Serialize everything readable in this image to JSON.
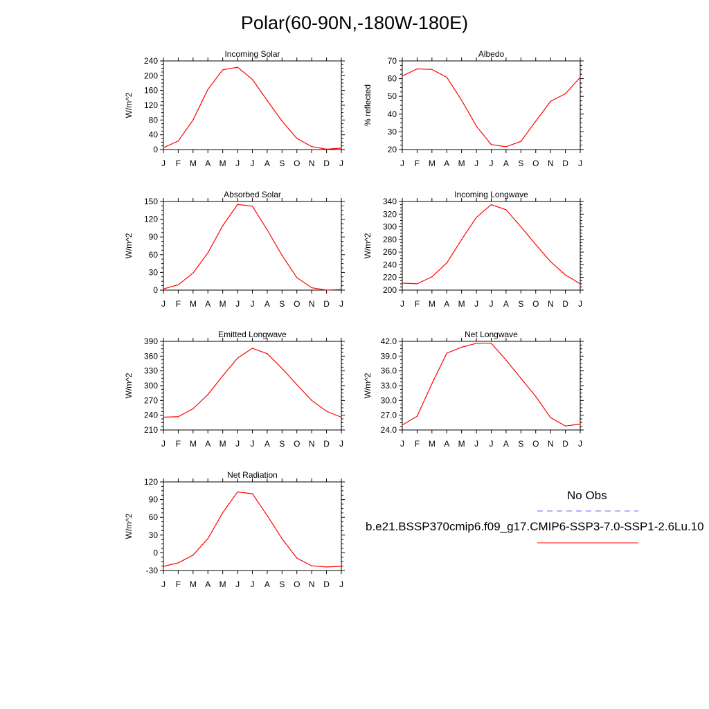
{
  "title": "Polar(60-90N,-180W-180E)",
  "months": [
    "J",
    "F",
    "M",
    "A",
    "M",
    "J",
    "J",
    "A",
    "S",
    "O",
    "N",
    "D",
    "J"
  ],
  "colors": {
    "model": "#ff0000",
    "obs": "#6666ff",
    "axis": "#000000"
  },
  "legend": {
    "obs_label": "No Obs",
    "case_label": "b.e21.BSSP370cmip6.f09_g17.CMIP6-SSP3-7.0-SSP1-2.6Lu.10"
  },
  "chart_data": [
    {
      "type": "line",
      "title": "Incoming Solar",
      "ylabel": "W/m^2",
      "ylim": [
        0,
        240
      ],
      "yticks": [
        "0",
        "40",
        "80",
        "120",
        "160",
        "200",
        "240"
      ],
      "values": [
        5,
        23,
        80,
        163,
        216,
        223,
        190,
        133,
        77,
        30,
        8,
        1,
        4
      ]
    },
    {
      "type": "line",
      "title": "Albedo",
      "ylabel": "% reflected",
      "ylim": [
        20,
        70
      ],
      "yticks": [
        "20",
        "30",
        "40",
        "50",
        "60",
        "70"
      ],
      "values": [
        61.5,
        65.5,
        65.2,
        60.8,
        47.8,
        33.2,
        22.8,
        21.6,
        24.6,
        36.0,
        47.2,
        51.5,
        60.8
      ]
    },
    {
      "type": "line",
      "title": "Absorbed Solar",
      "ylabel": "W/m^2",
      "ylim": [
        0,
        150
      ],
      "yticks": [
        "0",
        "30",
        "60",
        "90",
        "120",
        "150"
      ],
      "values": [
        2,
        9,
        29,
        63,
        109,
        145,
        142,
        102,
        59,
        21,
        4,
        0,
        1
      ]
    },
    {
      "type": "line",
      "title": "Incoming Longwave",
      "ylabel": "W/m^2",
      "ylim": [
        200,
        340
      ],
      "yticks": [
        "200",
        "220",
        "240",
        "260",
        "280",
        "300",
        "320",
        "340"
      ],
      "values": [
        211,
        210,
        221,
        243,
        280,
        315,
        335,
        327,
        300,
        272,
        245,
        224,
        210
      ]
    },
    {
      "type": "line",
      "title": "Emitted Longwave",
      "ylabel": "W/m^2",
      "ylim": [
        210,
        390
      ],
      "yticks": [
        "210",
        "240",
        "270",
        "300",
        "330",
        "360",
        "390"
      ],
      "values": [
        236,
        237,
        253,
        282,
        320,
        356,
        376,
        365,
        335,
        302,
        270,
        248,
        236
      ]
    },
    {
      "type": "line",
      "title": "Net Longwave",
      "ylabel": "W/m^2",
      "ylim": [
        24,
        42
      ],
      "yticks": [
        "24.0",
        "27.0",
        "30.0",
        "33.0",
        "36.0",
        "39.0",
        "42.0"
      ],
      "values": [
        25.0,
        26.8,
        33.4,
        39.6,
        40.8,
        41.6,
        41.6,
        38.2,
        34.5,
        30.8,
        26.5,
        24.8,
        25.2
      ]
    },
    {
      "type": "line",
      "title": "Net Radiation",
      "ylabel": "W/m^2",
      "ylim": [
        -30,
        120
      ],
      "yticks": [
        "-30",
        "0",
        "30",
        "60",
        "90",
        "120"
      ],
      "values": [
        -23,
        -17,
        -4,
        24,
        68,
        103,
        100,
        63,
        24,
        -9,
        -22,
        -24,
        -23
      ]
    }
  ]
}
